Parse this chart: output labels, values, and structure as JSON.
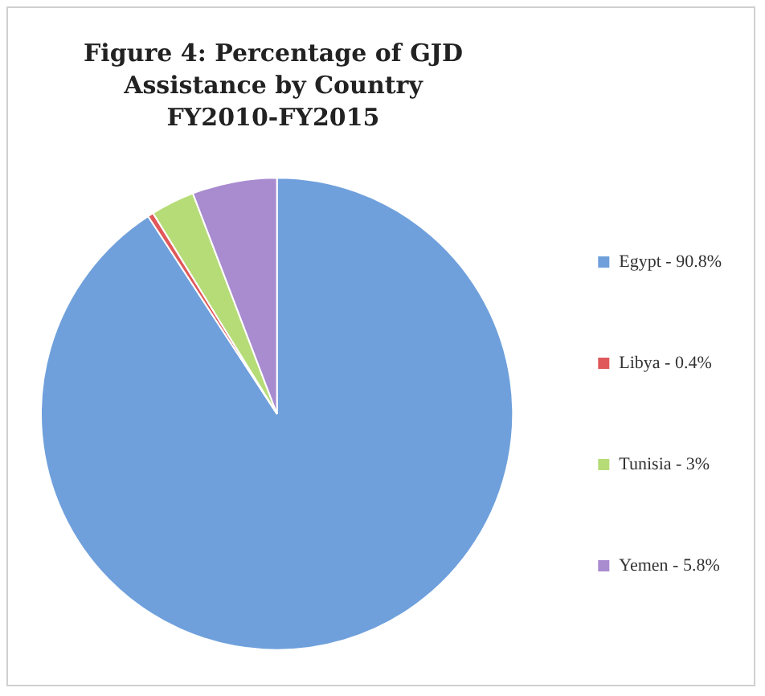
{
  "chart_data": {
    "type": "pie",
    "title": "Figure 4: Percentage of GJD Assistance by Country FY2010-FY2015",
    "categories": [
      "Egypt - 90.8%",
      "Libya - 0.4%",
      "Tunisia - 3%",
      "Yemen - 5.8%"
    ],
    "values": [
      90.8,
      0.4,
      3,
      5.8
    ],
    "colors": [
      "#6fa0dc",
      "#e0585a",
      "#b6dc78",
      "#a98bd0"
    ],
    "legend": "right"
  }
}
